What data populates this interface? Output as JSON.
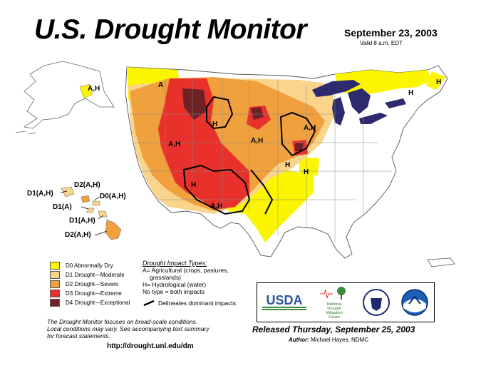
{
  "header": {
    "title": "U.S. Drought Monitor",
    "date": "September 23, 2003",
    "valid": "Valid 8 a.m. EDT"
  },
  "colors": {
    "d0": "#fbf500",
    "d1": "#f9d48a",
    "d2": "#f0a03c",
    "d3": "#e8312a",
    "d4": "#6e2226",
    "water": "#2d2a6e",
    "land": "#ffffff"
  },
  "map_labels": {
    "alaska": "A,H",
    "washington_oregon": "A",
    "idaho_nevada": "A,H",
    "montana": "H",
    "dakotas": "A,H",
    "nebraska": "A,H",
    "minnesota_iowa": "A,H",
    "iowa_missouri": "H",
    "illinois": "H",
    "arizona": "H",
    "new_mexico": "A,H",
    "maine": "H",
    "new_england": "H",
    "hawaii_1": "D2(A,H)",
    "hawaii_2": "D1(A,H)",
    "hawaii_3": "D0(A,H)",
    "hawaii_4": "D1(A)",
    "hawaii_5": "D1(A,H)",
    "hawaii_6": "D2(A,H)"
  },
  "legend": [
    {
      "label": "D0 Abnormally Dry",
      "color": "#fbf500"
    },
    {
      "label": "D1 Drought—Moderate",
      "color": "#f9d48a"
    },
    {
      "label": "D2 Drought—Severe",
      "color": "#f0a03c"
    },
    {
      "label": "D3 Drought—Extreme",
      "color": "#e8312a"
    },
    {
      "label": "D4 Drought—Exceptional",
      "color": "#6e2226"
    }
  ],
  "impact": {
    "title": "Drought Impact Types:",
    "line1": "A= Agricultural (crops, pastures,",
    "line2": "grasslands)",
    "line3": "H= Hydrological (water)",
    "line4": "No type = both impacts",
    "delineates": "Delineates dominant impacts"
  },
  "footnote": {
    "line1": "The Drought Monitor focuses on broad-scale conditions.",
    "line2": "Local conditions may vary. See accompanying text summary",
    "line3": "for forecast statements."
  },
  "url": "http://drought.unl.edu/dm",
  "released": "Released Thursday, September 25, 2003",
  "author_label": "Author:",
  "author_name": "Michael Hayes, NDMC",
  "logos": {
    "usda": "USDA",
    "ndmc_line1": "National",
    "ndmc_line2": "Drought",
    "ndmc_line3": "Mitigation",
    "ndmc_line4": "Center"
  }
}
